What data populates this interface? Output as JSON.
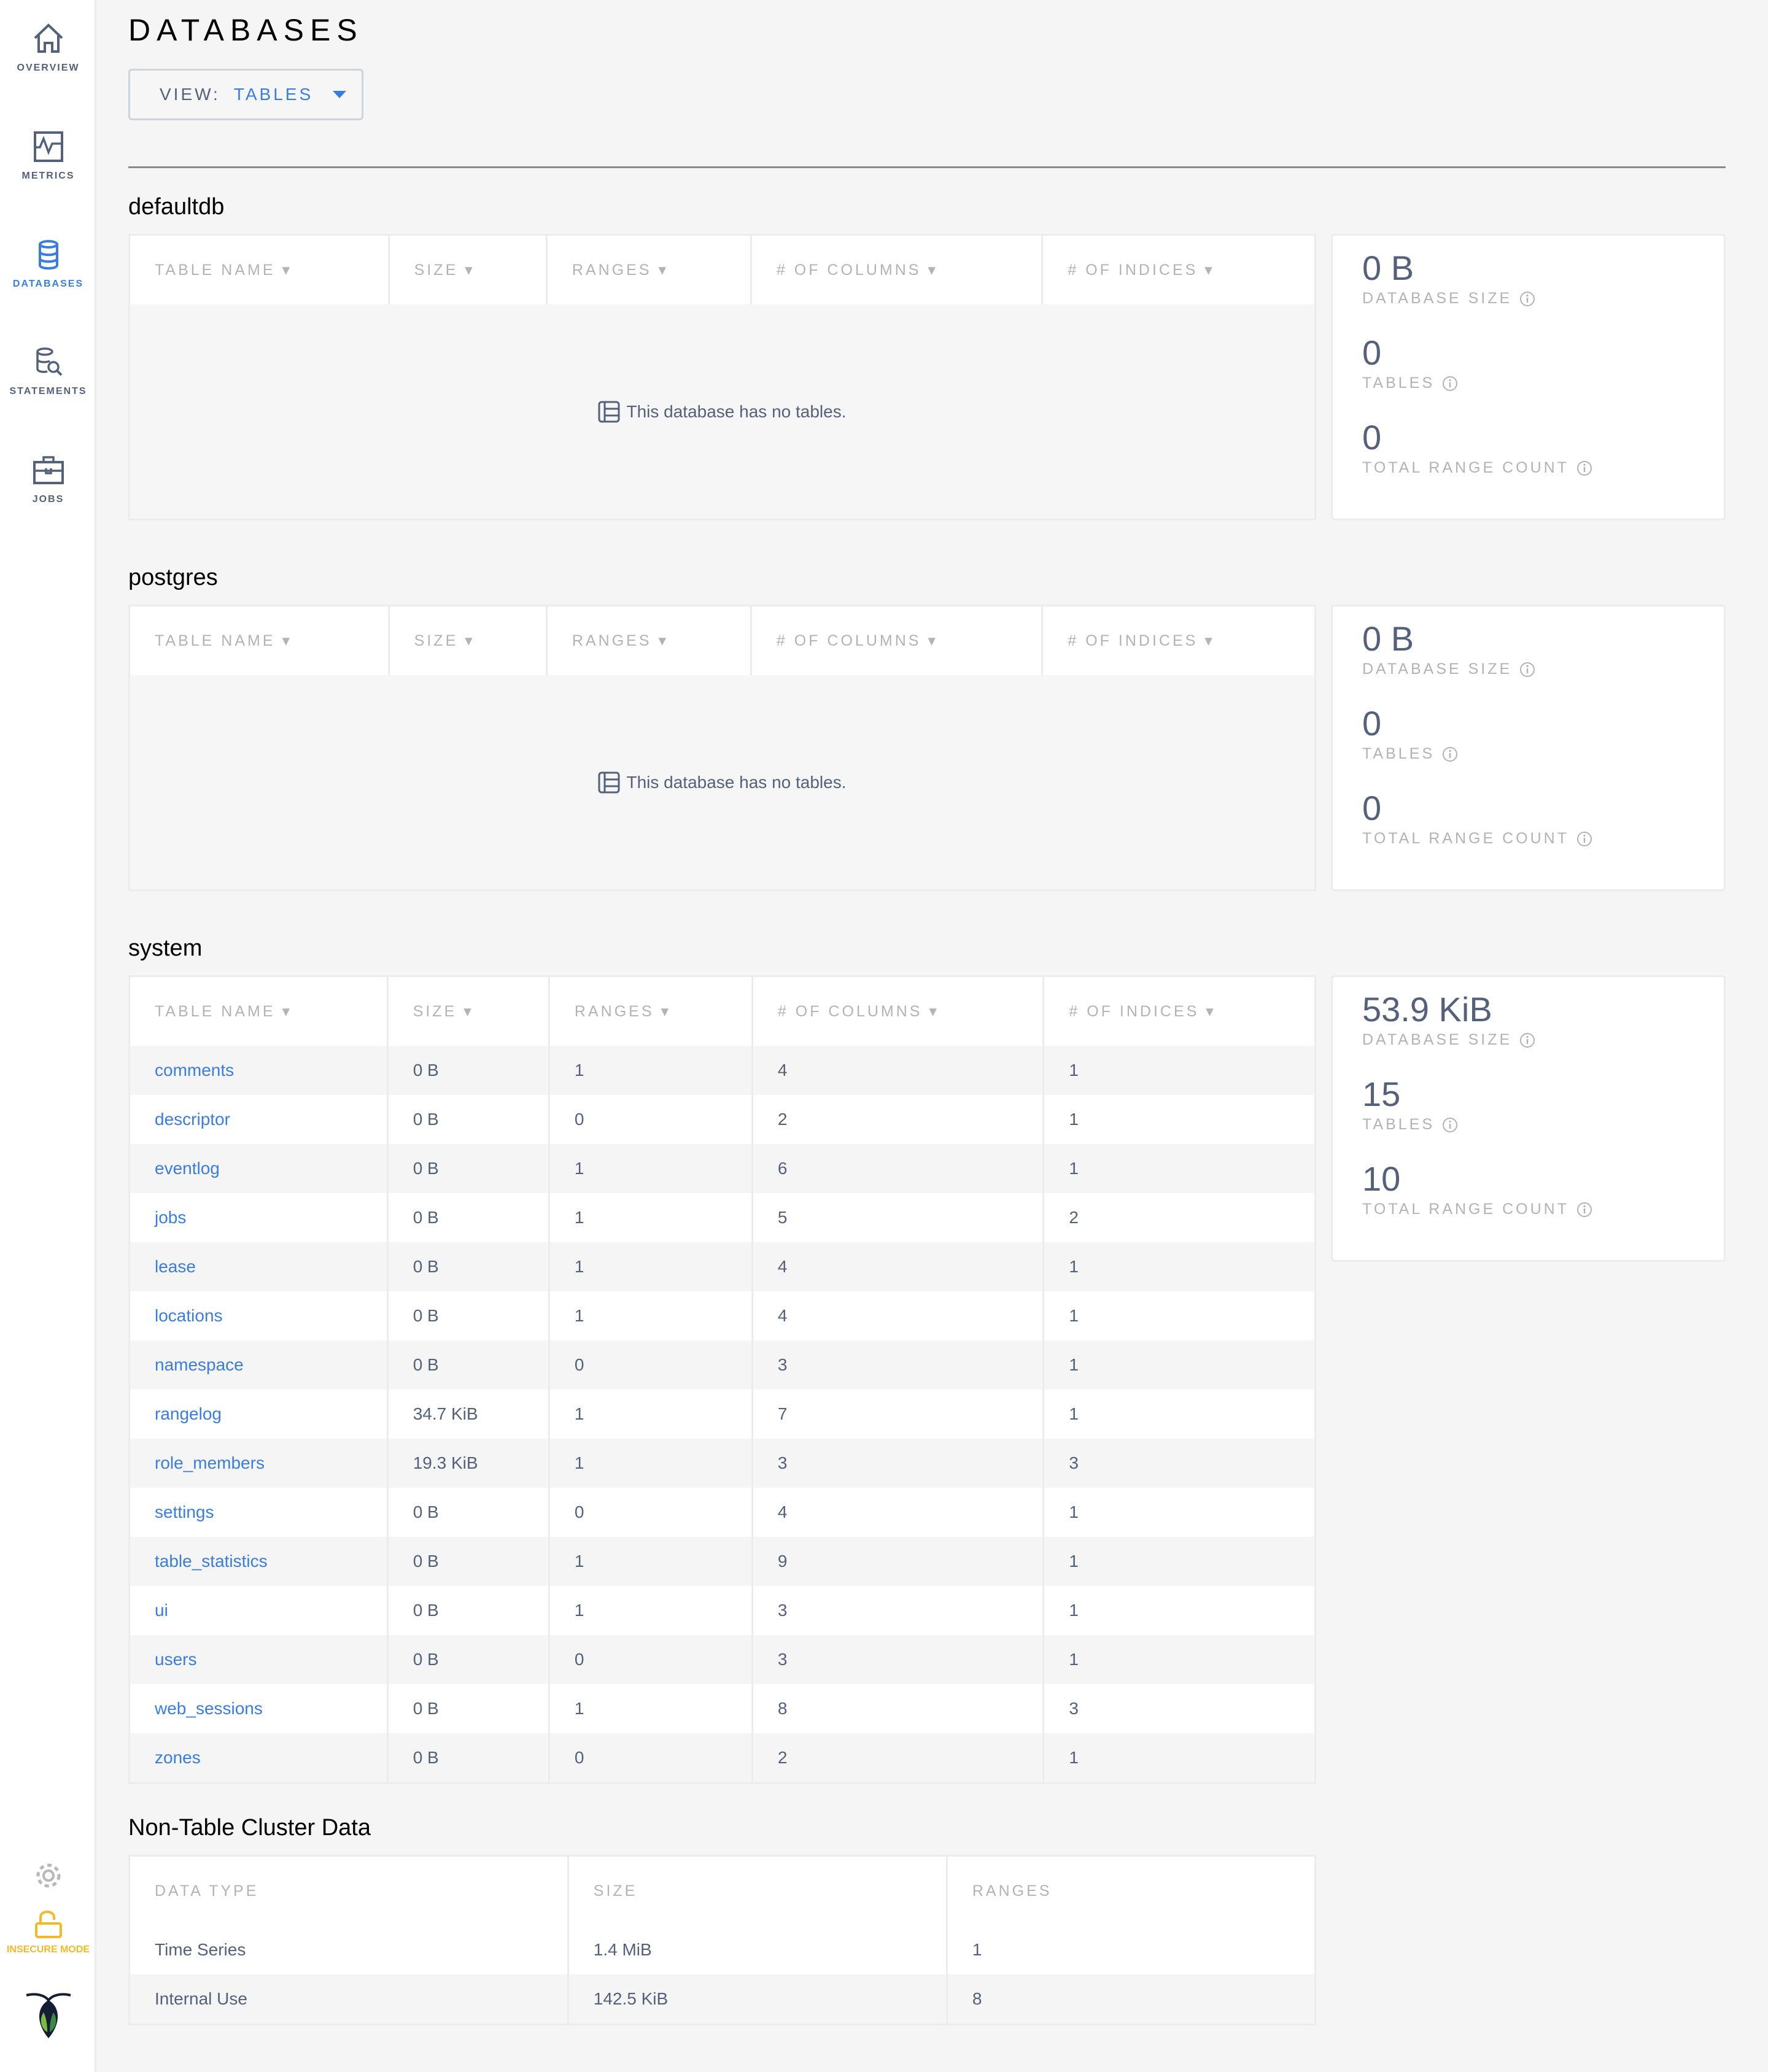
{
  "sidebar": {
    "items": [
      {
        "label": "OVERVIEW",
        "icon": "home-icon"
      },
      {
        "label": "METRICS",
        "icon": "metrics-icon"
      },
      {
        "label": "DATABASES",
        "icon": "database-icon",
        "active": true
      },
      {
        "label": "STATEMENTS",
        "icon": "statements-icon"
      },
      {
        "label": "JOBS",
        "icon": "jobs-icon"
      }
    ],
    "insecure_label": "INSECURE MODE",
    "colors": {
      "active": "#3a7de1",
      "insecure": "#f2b92b"
    }
  },
  "page": {
    "title": "DATABASES",
    "view_label": "VIEW:",
    "view_value": "TABLES"
  },
  "columns": [
    "TABLE NAME ▾",
    "SIZE ▾",
    "RANGES ▾",
    "# OF COLUMNS ▾",
    "# OF INDICES ▾"
  ],
  "empty_message": "This database has no tables.",
  "stat_labels": [
    "DATABASE SIZE",
    "TABLES",
    "TOTAL RANGE COUNT"
  ],
  "databases": [
    {
      "name": "defaultdb",
      "stats": [
        "0 B",
        "0",
        "0"
      ],
      "rows": []
    },
    {
      "name": "postgres",
      "stats": [
        "0 B",
        "0",
        "0"
      ],
      "rows": []
    },
    {
      "name": "system",
      "stats": [
        "53.9 KiB",
        "15",
        "10"
      ],
      "rows": [
        [
          "comments",
          "0 B",
          "1",
          "4",
          "1"
        ],
        [
          "descriptor",
          "0 B",
          "0",
          "2",
          "1"
        ],
        [
          "eventlog",
          "0 B",
          "1",
          "6",
          "1"
        ],
        [
          "jobs",
          "0 B",
          "1",
          "5",
          "2"
        ],
        [
          "lease",
          "0 B",
          "1",
          "4",
          "1"
        ],
        [
          "locations",
          "0 B",
          "1",
          "4",
          "1"
        ],
        [
          "namespace",
          "0 B",
          "0",
          "3",
          "1"
        ],
        [
          "rangelog",
          "34.7 KiB",
          "1",
          "7",
          "1"
        ],
        [
          "role_members",
          "19.3 KiB",
          "1",
          "3",
          "3"
        ],
        [
          "settings",
          "0 B",
          "0",
          "4",
          "1"
        ],
        [
          "table_statistics",
          "0 B",
          "1",
          "9",
          "1"
        ],
        [
          "ui",
          "0 B",
          "1",
          "3",
          "1"
        ],
        [
          "users",
          "0 B",
          "0",
          "3",
          "1"
        ],
        [
          "web_sessions",
          "0 B",
          "1",
          "8",
          "3"
        ],
        [
          "zones",
          "0 B",
          "0",
          "2",
          "1"
        ]
      ]
    }
  ],
  "non_table": {
    "title": "Non-Table Cluster Data",
    "columns": [
      "DATA TYPE",
      "SIZE",
      "RANGES"
    ],
    "rows": [
      [
        "Time Series",
        "1.4 MiB",
        "1"
      ],
      [
        "Internal Use",
        "142.5 KiB",
        "8"
      ]
    ]
  }
}
